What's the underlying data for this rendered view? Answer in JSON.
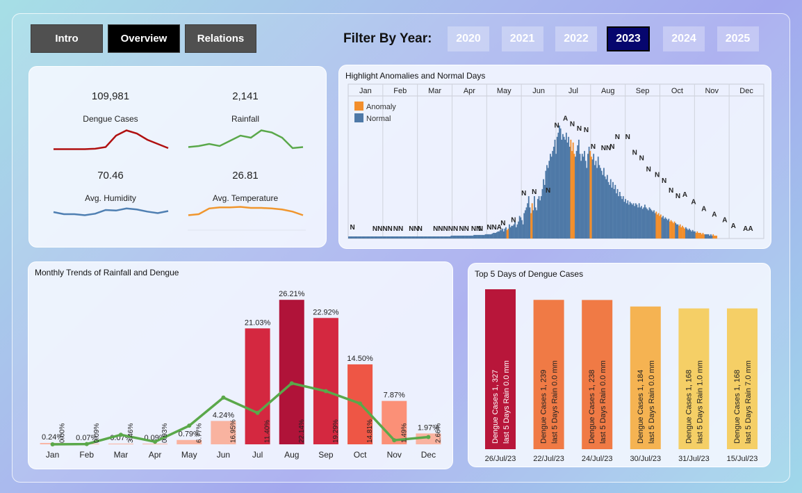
{
  "nav": {
    "tabs": [
      {
        "label": "Intro",
        "active": false
      },
      {
        "label": "Overview",
        "active": true
      },
      {
        "label": "Relations",
        "active": false
      }
    ]
  },
  "filter": {
    "label": "Filter By Year:",
    "years": [
      "2020",
      "2021",
      "2022",
      "2023",
      "2024",
      "2025"
    ],
    "selected": "2023"
  },
  "kpis": {
    "dengue": {
      "value": "109,981",
      "label": "Dengue Cases",
      "color": "#b01010",
      "trend": [
        0.05,
        0.05,
        0.05,
        0.05,
        0.07,
        0.15,
        0.7,
        0.95,
        0.8,
        0.5,
        0.3,
        0.1
      ]
    },
    "rainfall": {
      "value": "2,141",
      "label": "Rainfall",
      "color": "#5aa84a",
      "trend": [
        0.15,
        0.2,
        0.3,
        0.2,
        0.45,
        0.7,
        0.6,
        0.95,
        0.85,
        0.6,
        0.1,
        0.15
      ]
    },
    "humidity": {
      "value": "70.46",
      "label": "Avg. Humidity",
      "color": "#4f7fb2",
      "trend": [
        0.4,
        0.2,
        0.2,
        0.1,
        0.25,
        0.6,
        0.55,
        0.75,
        0.65,
        0.45,
        0.3,
        0.5
      ]
    },
    "temperature": {
      "value": "26.81",
      "label": "Avg. Temperature",
      "color": "#f0962e",
      "trend": [
        0.1,
        0.2,
        0.75,
        0.85,
        0.85,
        0.9,
        0.8,
        0.8,
        0.75,
        0.65,
        0.45,
        0.1
      ]
    }
  },
  "anomaly_chart": {
    "title": "Highlight Anomalies and Normal Days",
    "months": [
      "Jan",
      "Feb",
      "Mar",
      "Apr",
      "May",
      "Jun",
      "Jul",
      "Aug",
      "Sep",
      "Oct",
      "Nov",
      "Dec"
    ],
    "legend": [
      {
        "label": "Anomaly",
        "color": "#f28e2b"
      },
      {
        "label": "Normal",
        "color": "#4e79a7"
      }
    ],
    "day_labels": [
      {
        "text": "N",
        "month": 0.05,
        "value": 0.05
      },
      {
        "text": "NNNN",
        "month": 0.7,
        "value": 0.04
      },
      {
        "text": "NN",
        "month": 1.3,
        "value": 0.04
      },
      {
        "text": "NN",
        "month": 1.75,
        "value": 0.04
      },
      {
        "text": "N",
        "month": 2.0,
        "value": 0.04
      },
      {
        "text": "NNNNN",
        "month": 2.45,
        "value": 0.04
      },
      {
        "text": "NN",
        "month": 3.2,
        "value": 0.04
      },
      {
        "text": "NN",
        "month": 3.55,
        "value": 0.04
      },
      {
        "text": "N",
        "month": 3.75,
        "value": 0.04
      },
      {
        "text": "NNA",
        "month": 4.0,
        "value": 0.05
      },
      {
        "text": "N",
        "month": 4.4,
        "value": 0.08
      },
      {
        "text": "N",
        "month": 4.7,
        "value": 0.1
      },
      {
        "text": "N",
        "month": 5.0,
        "value": 0.29
      },
      {
        "text": "N",
        "month": 5.3,
        "value": 0.3
      },
      {
        "text": "N",
        "month": 5.7,
        "value": 0.31
      },
      {
        "text": "N",
        "month": 5.95,
        "value": 0.77
      },
      {
        "text": "A",
        "month": 6.2,
        "value": 0.82
      },
      {
        "text": "N",
        "month": 6.4,
        "value": 0.78
      },
      {
        "text": "N",
        "month": 6.6,
        "value": 0.75
      },
      {
        "text": "N",
        "month": 6.8,
        "value": 0.74
      },
      {
        "text": "N",
        "month": 7.0,
        "value": 0.62
      },
      {
        "text": "NN",
        "month": 7.3,
        "value": 0.61
      },
      {
        "text": "N",
        "month": 7.55,
        "value": 0.62
      },
      {
        "text": "N",
        "month": 7.7,
        "value": 0.69
      },
      {
        "text": "N",
        "month": 8.0,
        "value": 0.69
      },
      {
        "text": "N",
        "month": 8.2,
        "value": 0.58
      },
      {
        "text": "N",
        "month": 8.4,
        "value": 0.54
      },
      {
        "text": "N",
        "month": 8.6,
        "value": 0.46
      },
      {
        "text": "N",
        "month": 8.85,
        "value": 0.42
      },
      {
        "text": "N",
        "month": 9.05,
        "value": 0.38
      },
      {
        "text": "N",
        "month": 9.25,
        "value": 0.31
      },
      {
        "text": "N",
        "month": 9.45,
        "value": 0.27
      },
      {
        "text": "A",
        "month": 9.65,
        "value": 0.28
      },
      {
        "text": "A",
        "month": 9.9,
        "value": 0.23
      },
      {
        "text": "A",
        "month": 10.2,
        "value": 0.18
      },
      {
        "text": "A",
        "month": 10.5,
        "value": 0.14
      },
      {
        "text": "A",
        "month": 10.8,
        "value": 0.1
      },
      {
        "text": "A",
        "month": 11.05,
        "value": 0.06
      },
      {
        "text": "AA",
        "month": 11.4,
        "value": 0.04
      }
    ],
    "daily_values": [
      0.015,
      0.015,
      0.015,
      0.015,
      0.015,
      0.015,
      0.015,
      0.015,
      0.015,
      0.015,
      0.015,
      0.015,
      0.015,
      0.015,
      0.015,
      0.015,
      0.015,
      0.015,
      0.015,
      0.015,
      0.015,
      0.015,
      0.015,
      0.015,
      0.015,
      0.015,
      0.015,
      0.015,
      0.015,
      0.015,
      0.015,
      0.015,
      0.015,
      0.015,
      0.015,
      0.015,
      0.015,
      0.015,
      0.015,
      0.015,
      0.015,
      0.015,
      0.015,
      0.015,
      0.015,
      0.015,
      0.015,
      0.015,
      0.015,
      0.015,
      0.015,
      0.015,
      0.015,
      0.015,
      0.015,
      0.015,
      0.015,
      0.015,
      0.015,
      0.015,
      0.015,
      0.015,
      0.015,
      0.015,
      0.015,
      0.015,
      0.015,
      0.015,
      0.015,
      0.015,
      0.015,
      0.015,
      0.015,
      0.015,
      0.015,
      0.015,
      0.015,
      0.015,
      0.015,
      0.015,
      0.015,
      0.015,
      0.015,
      0.015,
      0.015,
      0.015,
      0.015,
      0.015,
      0.015,
      0.015,
      0.02,
      0.02,
      0.02,
      0.02,
      0.02,
      0.02,
      0.02,
      0.02,
      0.02,
      0.02,
      0.02,
      0.02,
      0.02,
      0.02,
      0.02,
      0.02,
      0.02,
      0.02,
      0.02,
      0.02,
      0.025,
      0.025,
      0.025,
      0.025,
      0.025,
      0.025,
      0.025,
      0.025,
      0.025,
      0.025,
      0.03,
      0.03,
      0.03,
      0.03,
      0.03,
      0.03,
      0.035,
      0.04,
      0.04,
      0.04,
      0.045,
      0.05,
      0.05,
      0.06,
      0.06,
      0.07,
      0.05,
      0.07,
      0.08,
      0.06,
      0.07,
      0.1,
      0.08,
      0.09,
      0.09,
      0.1,
      0.12,
      0.08,
      0.1,
      0.12,
      0.16,
      0.15,
      0.13,
      0.1,
      0.18,
      0.2,
      0.22,
      0.25,
      0.3,
      0.22,
      0.18,
      0.25,
      0.2,
      0.3,
      0.22,
      0.2,
      0.28,
      0.3,
      0.27,
      0.3,
      0.35,
      0.42,
      0.38,
      0.48,
      0.52,
      0.5,
      0.55,
      0.6,
      0.58,
      0.62,
      0.65,
      0.7,
      0.6,
      0.72,
      0.75,
      0.8,
      0.78,
      0.7,
      0.74,
      0.72,
      0.7,
      0.75,
      0.68,
      0.72,
      0.65,
      0.7,
      0.62,
      0.68,
      0.6,
      0.58,
      0.62,
      0.66,
      0.7,
      0.6,
      0.55,
      0.6,
      0.58,
      0.62,
      0.55,
      0.5,
      0.6,
      0.65,
      0.62,
      0.58,
      0.56,
      0.6,
      0.52,
      0.55,
      0.5,
      0.58,
      0.52,
      0.5,
      0.48,
      0.45,
      0.5,
      0.44,
      0.42,
      0.45,
      0.4,
      0.38,
      0.42,
      0.36,
      0.4,
      0.35,
      0.38,
      0.32,
      0.35,
      0.3,
      0.33,
      0.3,
      0.28,
      0.3,
      0.26,
      0.28,
      0.25,
      0.27,
      0.24,
      0.26,
      0.25,
      0.24,
      0.25,
      0.23,
      0.25,
      0.24,
      0.22,
      0.25,
      0.22,
      0.23,
      0.21,
      0.22,
      0.24,
      0.22,
      0.21,
      0.2,
      0.22,
      0.21,
      0.2,
      0.19,
      0.2,
      0.18,
      0.19,
      0.17,
      0.18,
      0.16,
      0.17,
      0.15,
      0.16,
      0.14,
      0.15,
      0.14,
      0.13,
      0.14,
      0.12,
      0.13,
      0.12,
      0.11,
      0.12,
      0.11,
      0.1,
      0.1,
      0.09,
      0.1,
      0.08,
      0.09,
      0.08,
      0.07,
      0.08,
      0.07,
      0.06,
      0.07,
      0.06,
      0.05,
      0.06,
      0.05,
      0.05,
      0.04,
      0.05,
      0.04,
      0.04,
      0.04,
      0.03,
      0.04,
      0.03,
      0.03,
      0.03,
      0.03,
      0.03,
      0.02,
      0.03,
      0.02,
      0.03,
      0.02,
      0.02,
      0.02
    ],
    "anomaly_ranges": [
      [
        139,
        140
      ],
      [
        160,
        161
      ],
      [
        195,
        198
      ],
      [
        212,
        213
      ],
      [
        270,
        274
      ],
      [
        282,
        286
      ],
      [
        290,
        295
      ],
      [
        305,
        312
      ],
      [
        320,
        330
      ],
      [
        338,
        346
      ],
      [
        352,
        364
      ]
    ]
  },
  "monthly_chart": {
    "title": "Monthly Trends of Rainfall and Dengue",
    "categories": [
      "Jan",
      "Feb",
      "Mar",
      "Apr",
      "May",
      "Jun",
      "Jul",
      "Aug",
      "Sep",
      "Oct",
      "Nov",
      "Dec"
    ],
    "dengue_pct": [
      0.24,
      0.07,
      0.07,
      0.09,
      0.79,
      4.24,
      21.03,
      26.21,
      22.92,
      14.5,
      7.87,
      1.97
    ],
    "dengue_labels": [
      "0.24%",
      "0.07%",
      "0.07%",
      "0.09%",
      "0.79%",
      "4.24%",
      "21.03%",
      "26.21%",
      "22.92%",
      "14.50%",
      "7.87%",
      "1.97%"
    ],
    "rain_pct": [
      0.0,
      0.09,
      3.46,
      0.93,
      6.77,
      16.95,
      11.4,
      22.14,
      19.29,
      14.81,
      1.49,
      2.66
    ],
    "rain_labels": [
      "0.00%",
      "0.09%",
      "3.46%",
      "0.93%",
      "6.77%",
      "16.95%",
      "11.40%",
      "22.14%",
      "19.29%",
      "14.81%",
      "1.49%",
      "2.66%"
    ],
    "ylim": [
      0,
      28
    ],
    "rain_color": "#5aa84a"
  },
  "top5": {
    "title": "Top 5 Days of Dengue Cases",
    "days": [
      {
        "date": "26/Jul/23",
        "cases": 1327,
        "line1": "Dengue Cases 1, 327",
        "line2": "last 5 Days Rain 0.0 mm",
        "color": "#b8163a",
        "text_color": "#ffffff"
      },
      {
        "date": "22/Jul/23",
        "cases": 1239,
        "line1": "Dengue Cases 1, 239",
        "line2": "last 5 Days Rain 0.0 mm",
        "color": "#f07a45",
        "text_color": "#222222"
      },
      {
        "date": "24/Jul/23",
        "cases": 1238,
        "line1": "Dengue Cases 1, 238",
        "line2": "last 5 Days Rain 0.0 mm",
        "color": "#f07a45",
        "text_color": "#222222"
      },
      {
        "date": "30/Jul/23",
        "cases": 1184,
        "line1": "Dengue Cases 1, 184",
        "line2": "last 5 Days Rain 0.0 mm",
        "color": "#f5b352",
        "text_color": "#222222"
      },
      {
        "date": "31/Jul/23",
        "cases": 1168,
        "line1": "Dengue Cases 1, 168",
        "line2": "last 5 Days Rain 1.0 mm",
        "color": "#f5cf66",
        "text_color": "#222222"
      },
      {
        "date": "15/Jul/23",
        "cases": 1168,
        "line1": "Dengue Cases 1, 168",
        "line2": "last 5 Days Rain 7.0 mm",
        "color": "#f5cf66",
        "text_color": "#222222"
      }
    ]
  }
}
